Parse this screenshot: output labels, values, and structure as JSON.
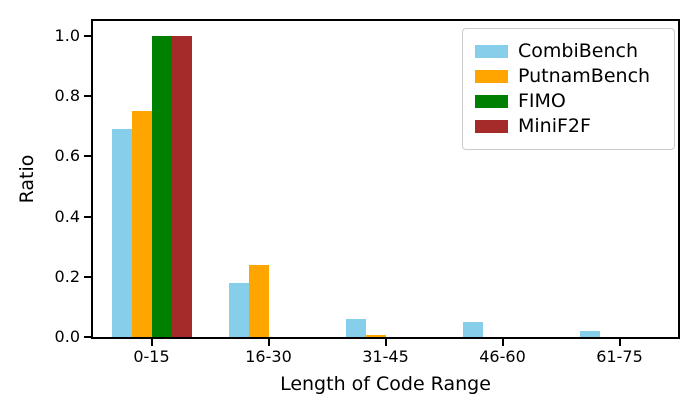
{
  "chart_data": {
    "type": "bar",
    "title": "",
    "xlabel": "Length of Code Range",
    "ylabel": "Ratio",
    "categories": [
      "0-15",
      "16-30",
      "31-45",
      "46-60",
      "61-75"
    ],
    "series": [
      {
        "name": "CombiBench",
        "color": "#87CEEB",
        "values": [
          0.69,
          0.18,
          0.06,
          0.05,
          0.02
        ]
      },
      {
        "name": "PutnamBench",
        "color": "#FFA500",
        "values": [
          0.75,
          0.24,
          0.005,
          0,
          0
        ]
      },
      {
        "name": "FIMO",
        "color": "#008000",
        "values": [
          1.0,
          0,
          0,
          0,
          0
        ]
      },
      {
        "name": "MiniF2F",
        "color": "#A52A2A",
        "values": [
          1.0,
          0,
          0,
          0,
          0
        ]
      }
    ],
    "ylim": [
      0,
      1.05
    ],
    "yticks": [
      "0.0",
      "0.2",
      "0.4",
      "0.6",
      "0.8",
      "1.0"
    ],
    "grid": false,
    "legend_position": "upper right",
    "axis_color": "#000000",
    "background_color": "#ffffff"
  }
}
